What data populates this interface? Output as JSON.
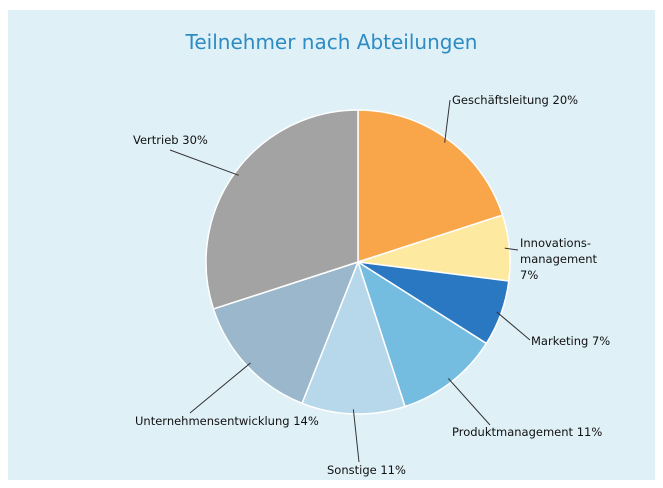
{
  "chart_data": {
    "type": "pie",
    "title": "Teilnehmer nach Abteilungen",
    "categories": [
      "Geschäftsleitung",
      "Innovations-management",
      "Marketing",
      "Produktmanagement",
      "Sonstige",
      "Unternehmensentwicklung",
      "Vertrieb"
    ],
    "values": [
      20,
      7,
      7,
      11,
      11,
      14,
      30
    ],
    "value_labels": [
      "20%",
      "7%",
      "7%",
      "11%",
      "11%",
      "14%",
      "30%"
    ],
    "colors": [
      "#f9a54a",
      "#fde9a0",
      "#2a78c2",
      "#74bde0",
      "#b6d8ea",
      "#9ab7cc",
      "#a3a3a3"
    ]
  }
}
